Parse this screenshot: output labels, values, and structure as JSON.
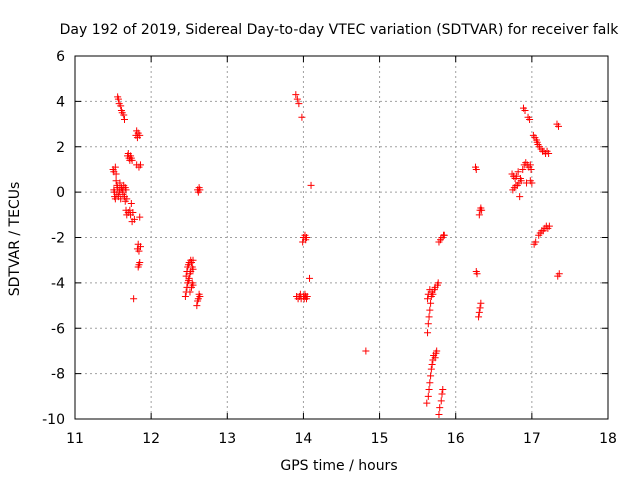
{
  "chart_data": {
    "type": "scatter",
    "title": "Day 192 of 2019, Sidereal Day-to-day VTEC variation (SDTVAR) for receiver falk",
    "xlabel": "GPS time / hours",
    "ylabel": "SDTVAR / TECUs",
    "xlim": [
      11,
      18
    ],
    "ylim": [
      -10,
      6
    ],
    "xticks": [
      11,
      12,
      13,
      14,
      15,
      16,
      17,
      18
    ],
    "yticks": [
      -10,
      -8,
      -6,
      -4,
      -2,
      0,
      2,
      4,
      6
    ],
    "grid": true,
    "marker": "+",
    "color": "#ff0000",
    "series": [
      {
        "name": "SDTVAR",
        "points": [
          [
            11.5,
            1.0
          ],
          [
            11.51,
            0.9
          ],
          [
            11.51,
            0.1
          ],
          [
            11.52,
            -0.2
          ],
          [
            11.52,
            0.0
          ],
          [
            11.53,
            1.1
          ],
          [
            11.53,
            -0.3
          ],
          [
            11.54,
            0.5
          ],
          [
            11.54,
            0.8
          ],
          [
            11.55,
            -0.1
          ],
          [
            11.55,
            0.3
          ],
          [
            11.56,
            0.2
          ],
          [
            11.56,
            4.2
          ],
          [
            11.57,
            -0.2
          ],
          [
            11.57,
            4.1
          ],
          [
            11.58,
            0.0
          ],
          [
            11.58,
            3.9
          ],
          [
            11.59,
            0.4
          ],
          [
            11.59,
            0.1
          ],
          [
            11.6,
            3.8
          ],
          [
            11.6,
            -0.3
          ],
          [
            11.61,
            0.2
          ],
          [
            11.61,
            3.6
          ],
          [
            11.62,
            0.1
          ],
          [
            11.62,
            3.5
          ],
          [
            11.63,
            -0.1
          ],
          [
            11.63,
            0.0
          ],
          [
            11.64,
            3.4
          ],
          [
            11.64,
            0.3
          ],
          [
            11.65,
            -0.2
          ],
          [
            11.65,
            3.2
          ],
          [
            11.66,
            -0.4
          ],
          [
            11.66,
            0.2
          ],
          [
            11.67,
            -0.8
          ],
          [
            11.67,
            0.1
          ],
          [
            11.68,
            -1.0
          ],
          [
            11.68,
            -0.3
          ],
          [
            11.69,
            1.6
          ],
          [
            11.7,
            1.7
          ],
          [
            11.7,
            -0.9
          ],
          [
            11.71,
            1.5
          ],
          [
            11.72,
            -0.8
          ],
          [
            11.72,
            1.4
          ],
          [
            11.73,
            1.6
          ],
          [
            11.73,
            -1.0
          ],
          [
            11.74,
            1.5
          ],
          [
            11.74,
            -0.5
          ],
          [
            11.75,
            -1.3
          ],
          [
            11.75,
            1.4
          ],
          [
            11.76,
            -0.9
          ],
          [
            11.77,
            -4.7
          ],
          [
            11.78,
            -1.2
          ],
          [
            11.8,
            2.5
          ],
          [
            11.81,
            2.7
          ],
          [
            11.81,
            1.2
          ],
          [
            11.82,
            2.4
          ],
          [
            11.82,
            -2.5
          ],
          [
            11.83,
            2.6
          ],
          [
            11.83,
            -2.3
          ],
          [
            11.83,
            -3.3
          ],
          [
            11.84,
            -2.6
          ],
          [
            11.84,
            1.1
          ],
          [
            11.84,
            -3.2
          ],
          [
            11.85,
            -1.1
          ],
          [
            11.85,
            2.5
          ],
          [
            11.85,
            -3.1
          ],
          [
            11.86,
            1.2
          ],
          [
            11.86,
            -2.4
          ],
          [
            12.45,
            -4.6
          ],
          [
            12.46,
            -4.4
          ],
          [
            12.46,
            -3.7
          ],
          [
            12.47,
            -4.2
          ],
          [
            12.47,
            -3.5
          ],
          [
            12.48,
            -4.0
          ],
          [
            12.48,
            -3.3
          ],
          [
            12.49,
            -3.9
          ],
          [
            12.49,
            -3.2
          ],
          [
            12.5,
            -3.8
          ],
          [
            12.5,
            -3.1
          ],
          [
            12.51,
            -3.6
          ],
          [
            12.51,
            -4.4
          ],
          [
            12.52,
            -3.0
          ],
          [
            12.52,
            -3.5
          ],
          [
            12.53,
            -4.2
          ],
          [
            12.53,
            -3.1
          ],
          [
            12.54,
            -3.3
          ],
          [
            12.54,
            -4.0
          ],
          [
            12.55,
            -3.0
          ],
          [
            12.55,
            -3.4
          ],
          [
            12.55,
            -4.1
          ],
          [
            12.6,
            -5.0
          ],
          [
            12.61,
            -4.8
          ],
          [
            12.61,
            0.1
          ],
          [
            12.62,
            -4.7
          ],
          [
            12.62,
            0.0
          ],
          [
            12.63,
            -4.5
          ],
          [
            12.63,
            0.2
          ],
          [
            12.64,
            -4.6
          ],
          [
            12.64,
            0.1
          ],
          [
            13.9,
            4.3
          ],
          [
            13.91,
            -4.6
          ],
          [
            13.92,
            4.1
          ],
          [
            13.93,
            -4.7
          ],
          [
            13.94,
            3.9
          ],
          [
            13.95,
            -4.6
          ],
          [
            13.96,
            -4.5
          ],
          [
            13.97,
            -4.7
          ],
          [
            13.98,
            3.3
          ],
          [
            13.99,
            -2.2
          ],
          [
            14.0,
            -4.6
          ],
          [
            14.0,
            -2.0
          ],
          [
            14.01,
            -4.7
          ],
          [
            14.02,
            -1.9
          ],
          [
            14.02,
            -4.5
          ],
          [
            14.03,
            -4.6
          ],
          [
            14.03,
            -2.1
          ],
          [
            14.04,
            -2.0
          ],
          [
            14.04,
            -4.7
          ],
          [
            14.05,
            -4.6
          ],
          [
            14.08,
            -3.8
          ],
          [
            14.1,
            0.3
          ],
          [
            14.82,
            -7.0
          ],
          [
            15.62,
            -9.3
          ],
          [
            15.63,
            -6.2
          ],
          [
            15.63,
            -4.7
          ],
          [
            15.64,
            -9.0
          ],
          [
            15.64,
            -5.8
          ],
          [
            15.64,
            -4.5
          ],
          [
            15.65,
            -8.7
          ],
          [
            15.65,
            -5.5
          ],
          [
            15.66,
            -8.4
          ],
          [
            15.66,
            -5.2
          ],
          [
            15.66,
            -4.3
          ],
          [
            15.67,
            -8.1
          ],
          [
            15.67,
            -4.9
          ],
          [
            15.68,
            -7.8
          ],
          [
            15.68,
            -4.6
          ],
          [
            15.69,
            -7.6
          ],
          [
            15.69,
            -4.4
          ],
          [
            15.7,
            -7.4
          ],
          [
            15.7,
            -4.5
          ],
          [
            15.71,
            -7.2
          ],
          [
            15.72,
            -4.3
          ],
          [
            15.73,
            -7.3
          ],
          [
            15.73,
            -4.2
          ],
          [
            15.74,
            -7.1
          ],
          [
            15.75,
            -7.0
          ],
          [
            15.76,
            -4.1
          ],
          [
            15.77,
            -4.0
          ],
          [
            15.78,
            -9.8
          ],
          [
            15.78,
            -2.2
          ],
          [
            15.79,
            -9.5
          ],
          [
            15.8,
            -2.1
          ],
          [
            15.81,
            -9.2
          ],
          [
            15.82,
            -2.0
          ],
          [
            15.82,
            -8.9
          ],
          [
            15.83,
            -8.7
          ],
          [
            15.84,
            -1.9
          ],
          [
            15.85,
            -1.9
          ],
          [
            16.26,
            1.1
          ],
          [
            16.27,
            1.0
          ],
          [
            16.27,
            -3.5
          ],
          [
            16.28,
            -3.6
          ],
          [
            16.3,
            -5.5
          ],
          [
            16.31,
            -1.0
          ],
          [
            16.31,
            -5.3
          ],
          [
            16.32,
            -0.8
          ],
          [
            16.32,
            -5.1
          ],
          [
            16.33,
            -4.9
          ],
          [
            16.33,
            -0.7
          ],
          [
            16.34,
            -0.8
          ],
          [
            16.74,
            0.8
          ],
          [
            16.75,
            0.1
          ],
          [
            16.76,
            0.7
          ],
          [
            16.77,
            0.2
          ],
          [
            16.78,
            0.6
          ],
          [
            16.79,
            0.3
          ],
          [
            16.8,
            0.7
          ],
          [
            16.81,
            0.3
          ],
          [
            16.82,
            0.9
          ],
          [
            16.83,
            0.4
          ],
          [
            16.84,
            -0.2
          ],
          [
            16.85,
            0.6
          ],
          [
            16.86,
            0.5
          ],
          [
            16.88,
            1.0
          ],
          [
            16.89,
            3.7
          ],
          [
            16.9,
            1.2
          ],
          [
            16.91,
            3.6
          ],
          [
            16.92,
            1.3
          ],
          [
            16.93,
            0.4
          ],
          [
            16.94,
            1.2
          ],
          [
            16.95,
            3.3
          ],
          [
            16.96,
            1.1
          ],
          [
            16.97,
            3.2
          ],
          [
            16.98,
            0.5
          ],
          [
            16.98,
            1.2
          ],
          [
            16.99,
            1.0
          ],
          [
            17.0,
            0.4
          ],
          [
            17.02,
            2.5
          ],
          [
            17.03,
            -2.3
          ],
          [
            17.04,
            2.4
          ],
          [
            17.05,
            -2.2
          ],
          [
            17.06,
            2.3
          ],
          [
            17.07,
            2.2
          ],
          [
            17.08,
            2.1
          ],
          [
            17.09,
            -1.9
          ],
          [
            17.1,
            2.0
          ],
          [
            17.11,
            -1.8
          ],
          [
            17.12,
            1.9
          ],
          [
            17.13,
            -1.7
          ],
          [
            17.14,
            1.8
          ],
          [
            17.15,
            -1.7
          ],
          [
            17.16,
            1.8
          ],
          [
            17.17,
            -1.6
          ],
          [
            17.18,
            1.7
          ],
          [
            17.19,
            -1.5
          ],
          [
            17.2,
            1.8
          ],
          [
            17.21,
            -1.6
          ],
          [
            17.22,
            1.7
          ],
          [
            17.23,
            -1.5
          ],
          [
            17.33,
            3.0
          ],
          [
            17.34,
            -3.7
          ],
          [
            17.35,
            2.9
          ],
          [
            17.36,
            -3.6
          ]
        ]
      }
    ]
  }
}
